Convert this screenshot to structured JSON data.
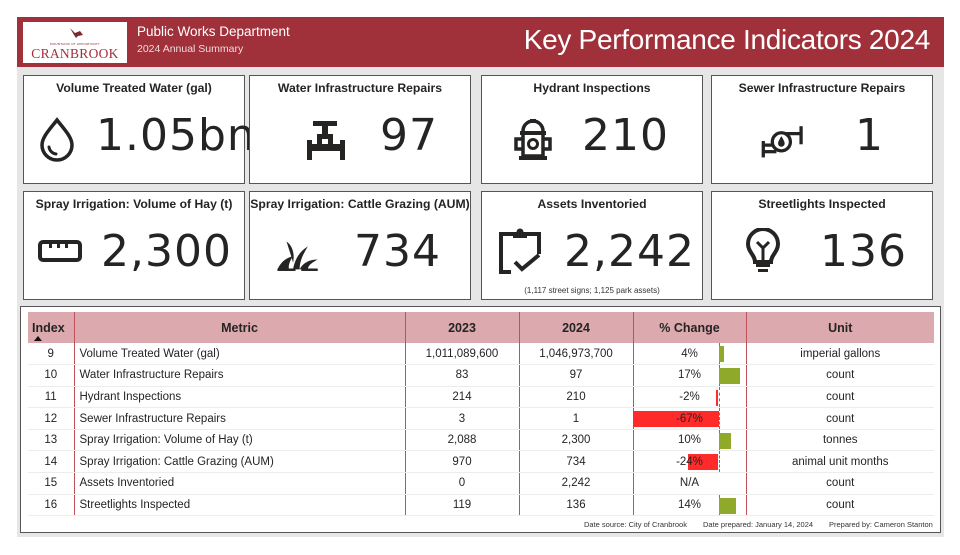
{
  "header": {
    "logo_tagline": "MOUNTAINS OF OPPORTUNITY",
    "logo_name": "CRANBROOK",
    "department": "Public Works Department",
    "subtitle": "2024 Annual Summary",
    "title": "Key Performance Indicators 2024"
  },
  "cards": [
    {
      "title": "Volume Treated Water (gal)",
      "value": "1.05bn",
      "icon": "water-drop-icon"
    },
    {
      "title": "Water Infrastructure Repairs",
      "value": "97",
      "icon": "pipe-valve-icon"
    },
    {
      "title": "Hydrant Inspections",
      "value": "210",
      "icon": "fire-hydrant-icon"
    },
    {
      "title": "Sewer Infrastructure Repairs",
      "value": "1",
      "icon": "sewer-pump-icon"
    },
    {
      "title": "Spray Irrigation: Volume of Hay (t)",
      "value": "2,300",
      "icon": "ruler-icon"
    },
    {
      "title": "Spray Irrigation: Cattle Grazing (AUM)",
      "value": "734",
      "icon": "grass-icon"
    },
    {
      "title": "Assets Inventoried",
      "value": "2,242",
      "icon": "clipboard-check-icon",
      "note": "(1,117 street signs; 1,125 park assets)"
    },
    {
      "title": "Streetlights Inspected",
      "value": "136",
      "icon": "lightbulb-icon"
    }
  ],
  "table": {
    "columns": [
      "Index",
      "Metric",
      "2023",
      "2024",
      "% Change",
      "Unit"
    ],
    "sort_column": "Index",
    "sort_direction": "ascending",
    "rows": [
      {
        "index": "9",
        "metric": "Volume Treated Water (gal)",
        "y2023": "1,011,089,600",
        "y2024": "1,046,973,700",
        "change": "4%",
        "change_value": 4,
        "unit": "imperial gallons"
      },
      {
        "index": "10",
        "metric": "Water Infrastructure Repairs",
        "y2023": "83",
        "y2024": "97",
        "change": "17%",
        "change_value": 17,
        "unit": "count"
      },
      {
        "index": "11",
        "metric": "Hydrant Inspections",
        "y2023": "214",
        "y2024": "210",
        "change": "-2%",
        "change_value": -2,
        "unit": "count"
      },
      {
        "index": "12",
        "metric": "Sewer Infrastructure Repairs",
        "y2023": "3",
        "y2024": "1",
        "change": "-67%",
        "change_value": -67,
        "unit": "count"
      },
      {
        "index": "13",
        "metric": "Spray Irrigation: Volume of Hay (t)",
        "y2023": "2,088",
        "y2024": "2,300",
        "change": "10%",
        "change_value": 10,
        "unit": "tonnes"
      },
      {
        "index": "14",
        "metric": "Spray Irrigation: Cattle Grazing (AUM)",
        "y2023": "970",
        "y2024": "734",
        "change": "-24%",
        "change_value": -24,
        "unit": "animal unit months"
      },
      {
        "index": "15",
        "metric": "Assets Inventoried",
        "y2023": "0",
        "y2024": "2,242",
        "change": "N/A",
        "change_value": null,
        "unit": "count"
      },
      {
        "index": "16",
        "metric": "Streetlights Inspected",
        "y2023": "119",
        "y2024": "136",
        "change": "14%",
        "change_value": 14,
        "unit": "count"
      }
    ]
  },
  "colors": {
    "brand": "#a0313b",
    "header_row": "#dba9ae",
    "positive": "#8faa2b",
    "negative": "#ff2b2b"
  },
  "footer": {
    "source": "Date source: City of Cranbrook",
    "prepared_date": "Date prepared: January 14, 2024",
    "prepared_by": "Prepared by: Cameron Stanton"
  }
}
